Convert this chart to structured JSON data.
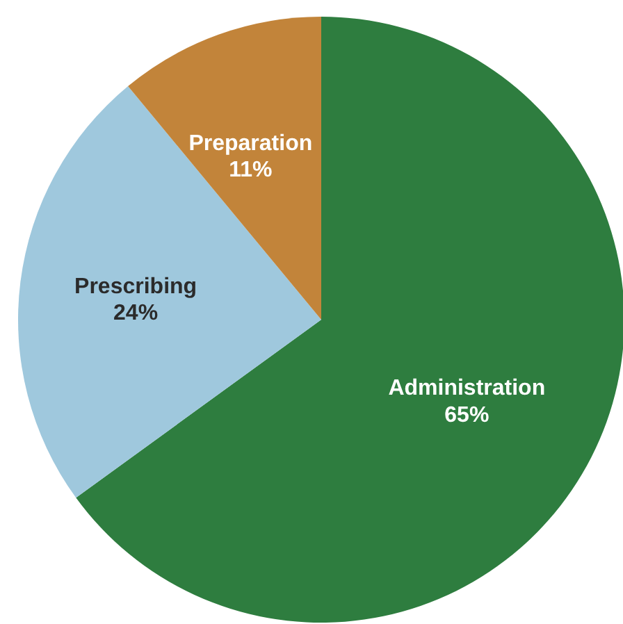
{
  "chart_data": {
    "type": "pie",
    "categories": [
      "Administration",
      "Prescribing",
      "Preparation"
    ],
    "values": [
      65,
      24,
      11
    ],
    "colors": [
      "#2e7d3f",
      "#9fc8dd",
      "#c2843a"
    ],
    "value_labels": [
      "65%",
      "24%",
      "11%"
    ],
    "legend": false
  }
}
